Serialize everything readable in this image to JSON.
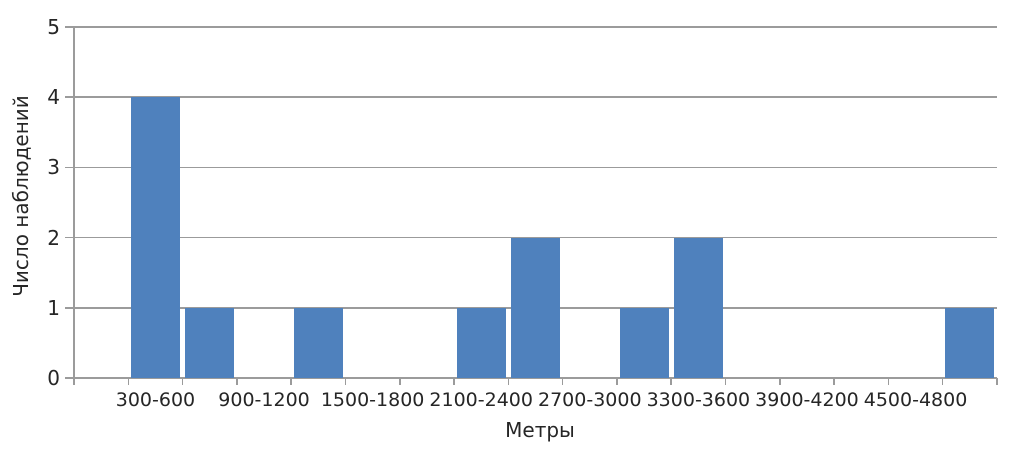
{
  "chart_data": {
    "type": "bar",
    "title": "",
    "xlabel": "Метры",
    "ylabel": "Число наблюдений",
    "categories": [
      "",
      "300-600",
      "",
      "900-1200",
      "",
      "1500-1800",
      "",
      "2100-2400",
      "",
      "2700-3000",
      "",
      "3300-3600",
      "",
      "3900-4200",
      "",
      "4500-4800",
      ""
    ],
    "values": [
      0,
      4,
      1,
      0,
      1,
      0,
      0,
      1,
      2,
      0,
      1,
      2,
      0,
      0,
      0,
      0,
      1
    ],
    "y_ticks": [
      0,
      1,
      2,
      3,
      4,
      5
    ],
    "ylim": [
      0,
      5
    ],
    "grid": true,
    "legend": "none",
    "bar_color": "#4f81bd",
    "gridline_color": "#9b9b9b",
    "axis_color": "#9b9b9b",
    "text_color": "#262626",
    "background_color": "#ffffff"
  }
}
